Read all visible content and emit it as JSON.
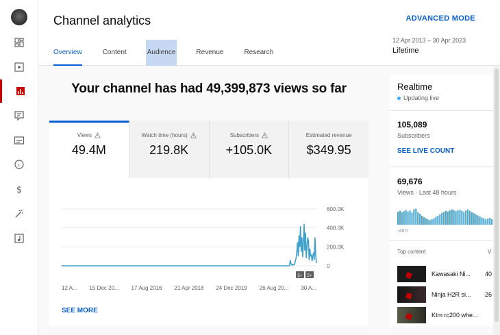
{
  "header": {
    "title": "Channel analytics",
    "advanced_mode": "ADVANCED MODE",
    "date_range": "12 Apr 2013 – 30 Apr 2023",
    "date_label": "Lifetime",
    "tabs": [
      {
        "label": "Overview",
        "active": true
      },
      {
        "label": "Content",
        "active": false
      },
      {
        "label": "Audience",
        "active": false
      },
      {
        "label": "Revenue",
        "active": false
      },
      {
        "label": "Research",
        "active": false
      }
    ]
  },
  "sidebar": {
    "items": [
      {
        "icon": "dashboard-icon"
      },
      {
        "icon": "content-icon"
      },
      {
        "icon": "analytics-icon",
        "active": true
      },
      {
        "icon": "comments-icon"
      },
      {
        "icon": "subtitles-icon"
      },
      {
        "icon": "copyright-icon"
      },
      {
        "icon": "earn-icon"
      },
      {
        "icon": "customisation-icon"
      },
      {
        "icon": "audio-library-icon"
      }
    ]
  },
  "main": {
    "headline": "Your channel has had 49,399,873 views so far",
    "metrics": [
      {
        "label": "Views",
        "value": "49.4M",
        "active": true
      },
      {
        "label": "Watch time (hours)",
        "value": "219.8K",
        "active": false
      },
      {
        "label": "Subscribers",
        "value": "+105.0K",
        "active": false
      },
      {
        "label": "Estimated revenue",
        "value": "$349.95",
        "active": false
      }
    ],
    "see_more": "SEE MORE"
  },
  "chart_data": {
    "type": "line",
    "x_tick_labels": [
      "12 A...",
      "15 Dec 20...",
      "17 Aug 2016",
      "21 Apr 2018",
      "24 Dec 2019",
      "26 Aug 20...",
      "30 A..."
    ],
    "y_tick_labels": [
      "600.0K",
      "400.0K",
      "200.0K",
      "0"
    ],
    "ylim": [
      0,
      600000
    ],
    "markers": [
      "5+",
      "5+"
    ],
    "series": [
      {
        "color": "#41a0cc",
        "values": [
          0,
          0,
          0,
          0,
          0,
          0,
          0,
          0,
          0,
          0,
          0,
          0,
          0,
          0,
          0,
          0,
          0,
          0,
          0,
          0,
          0,
          0,
          0,
          0,
          0,
          0,
          0,
          0,
          0,
          0,
          0,
          0,
          0,
          0,
          0,
          0,
          0,
          0,
          0,
          0,
          0,
          0,
          0,
          0,
          0,
          0,
          0,
          0,
          0,
          0,
          0,
          0,
          0,
          0,
          0,
          0,
          0,
          0,
          0,
          0,
          0,
          0,
          0,
          0,
          0,
          0,
          0,
          0,
          0,
          0,
          0,
          0,
          0,
          0,
          0,
          0,
          0,
          0,
          0,
          0,
          0,
          0,
          0,
          0,
          0,
          0,
          0,
          0,
          0,
          0,
          0,
          0,
          0,
          0,
          0,
          0,
          0,
          0,
          0,
          0,
          0,
          0,
          0,
          0,
          0,
          0,
          0,
          0,
          0,
          0,
          0,
          0,
          0,
          0,
          0,
          0,
          0,
          0,
          0,
          0,
          0,
          0,
          0,
          0,
          0,
          0,
          0,
          0,
          0,
          0,
          0,
          0,
          0,
          0,
          0,
          0,
          0,
          0,
          0,
          0,
          0,
          0,
          0,
          0,
          0,
          0,
          0,
          0,
          0,
          0,
          0,
          0,
          0,
          0,
          0,
          0,
          0,
          0,
          0,
          0,
          0,
          0,
          0,
          0,
          0,
          0,
          0,
          0,
          0,
          0,
          0,
          0,
          0,
          0,
          0,
          0,
          0,
          0,
          0,
          0,
          0,
          0,
          0,
          0,
          0,
          0,
          0,
          0,
          0,
          0,
          0,
          0,
          0,
          0,
          0,
          0,
          0,
          0,
          0,
          0,
          0,
          0,
          0,
          0,
          0,
          0,
          0,
          0,
          0,
          0,
          0,
          0,
          0,
          0,
          0,
          0,
          0,
          0,
          0,
          0,
          0,
          0,
          0,
          0,
          0,
          0,
          0,
          0,
          0,
          0,
          0,
          0,
          0,
          0,
          0,
          0,
          0,
          0,
          0,
          0,
          0,
          0,
          0,
          0,
          0,
          0,
          0,
          0,
          0,
          0,
          0,
          0,
          0,
          0,
          0,
          0,
          0,
          0,
          0,
          0,
          0,
          0,
          0,
          0,
          0,
          0,
          0,
          0,
          0,
          0,
          0,
          0,
          0,
          0,
          0,
          0,
          0,
          0,
          0,
          0,
          0,
          0,
          0,
          0,
          0,
          0,
          0,
          0,
          0,
          0,
          0,
          0,
          0,
          0,
          0,
          0,
          0,
          0,
          0,
          0,
          0,
          0,
          0,
          0,
          0,
          0,
          0,
          0,
          0,
          0,
          0,
          0,
          0,
          0,
          0,
          60000,
          20000,
          10000,
          5000,
          15000,
          10000,
          20000,
          50000,
          80000,
          150000,
          250000,
          100000,
          320000,
          200000,
          420000,
          150000,
          300000,
          90000,
          230000,
          440000,
          160000,
          350000,
          80000,
          200000,
          300000,
          260000,
          60000,
          180000,
          100000,
          120000,
          50000,
          100000,
          140000,
          60000,
          300000,
          120000,
          30000
        ]
      }
    ]
  },
  "realtime": {
    "title": "Realtime",
    "status": "Updating live",
    "subscribers": "105,089",
    "subscribers_label": "Subscribers",
    "see_live_count": "SEE LIVE COUNT",
    "views": "69,676",
    "views_label": "Views · Last 48 hours",
    "hourly": [
      0.72,
      0.78,
      0.7,
      0.76,
      0.82,
      0.74,
      0.8,
      0.68,
      0.86,
      0.9,
      0.7,
      0.62,
      0.5,
      0.42,
      0.36,
      0.3,
      0.26,
      0.3,
      0.36,
      0.44,
      0.5,
      0.58,
      0.66,
      0.72,
      0.78,
      0.74,
      0.8,
      0.86,
      0.82,
      0.76,
      0.8,
      0.84,
      0.78,
      0.72,
      0.8,
      0.86,
      0.78,
      0.7,
      0.64,
      0.58,
      0.52,
      0.46,
      0.4,
      0.36,
      0.3,
      0.34,
      0.38,
      0.32
    ],
    "hours_label": "-48 h",
    "top_content_label": "Top content",
    "views_abbr": "V",
    "top_content": [
      {
        "title": "Kawasaki Ni...",
        "count": "40"
      },
      {
        "title": "Ninja H2R si...",
        "count": "26"
      },
      {
        "title": "Ktm rc200 whe...",
        "count": ""
      }
    ]
  }
}
